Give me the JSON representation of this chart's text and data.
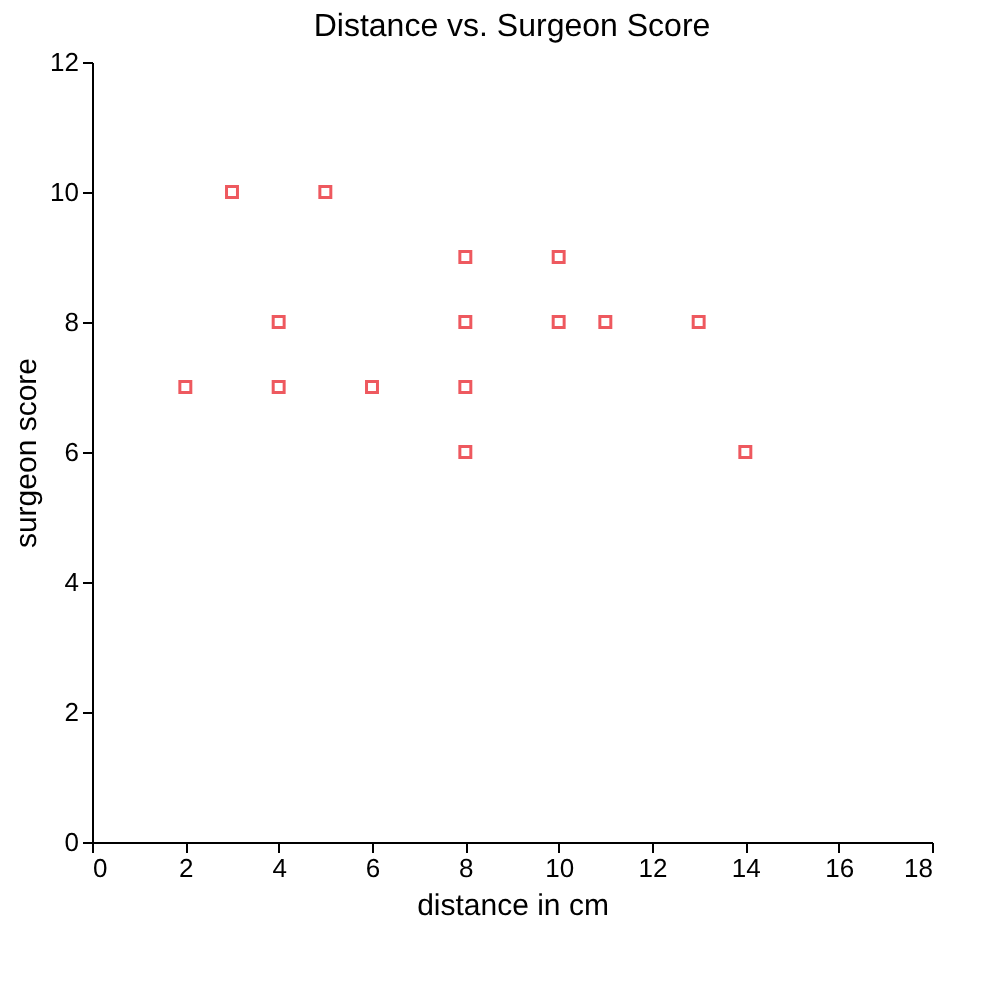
{
  "chart_data": {
    "type": "scatter",
    "title": "Distance vs. Surgeon Score",
    "xlabel": "distance in cm",
    "ylabel": "surgeon score",
    "x": [
      2,
      3,
      4,
      4,
      5,
      6,
      8,
      8,
      8,
      8,
      10,
      10,
      11,
      13,
      14
    ],
    "series": [
      {
        "color": "#e8141c",
        "values": [
          7,
          10,
          8,
          7,
          10,
          7,
          9,
          8,
          7,
          6,
          9,
          8,
          8,
          8,
          6
        ]
      }
    ],
    "xlim": [
      0,
      18
    ],
    "xticks": [
      0,
      2,
      4,
      6,
      8,
      10,
      12,
      14,
      16,
      18
    ],
    "ylim": [
      0,
      12
    ],
    "yticks": [
      0,
      2,
      4,
      6,
      8,
      10,
      12
    ],
    "marker": "square",
    "grid": false,
    "legend": false
  }
}
